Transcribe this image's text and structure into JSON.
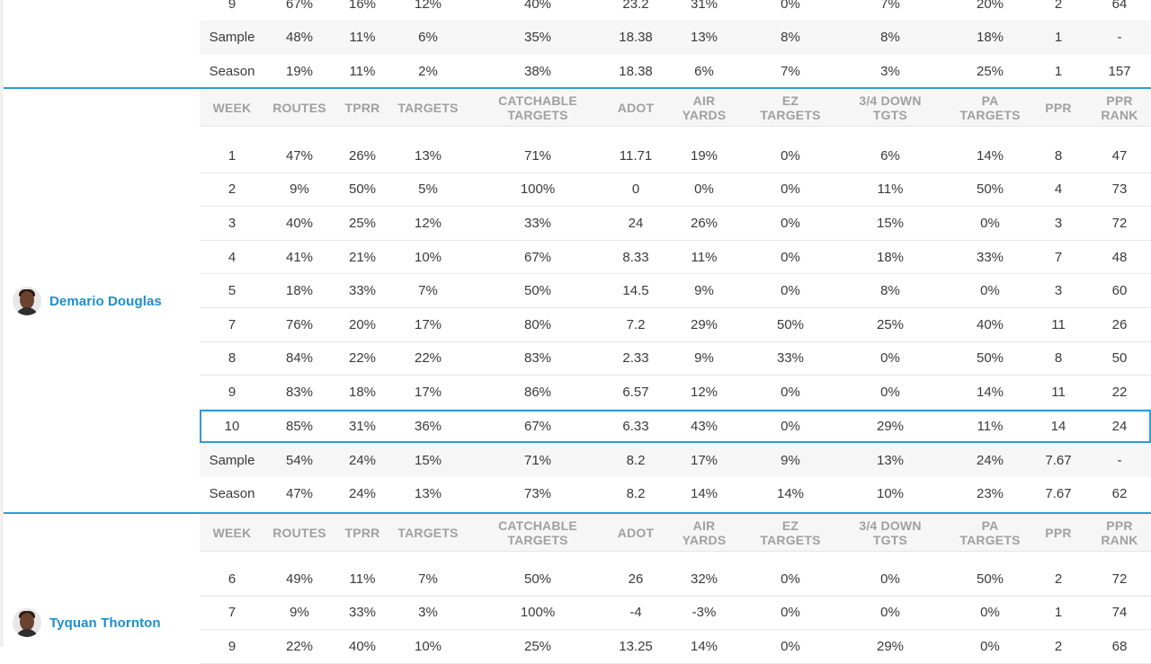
{
  "columns": [
    "WEEK",
    "ROUTES",
    "TPRR",
    "TARGETS",
    "CATCHABLE\nTARGETS",
    "ADOT",
    "AIR\nYARDS",
    "EZ\nTARGETS",
    "3/4 DOWN\nTGTS",
    "PA\nTARGETS",
    "PPR",
    "PPR\nRANK"
  ],
  "prev_player": {
    "rows": [
      [
        "9",
        "67%",
        "16%",
        "12%",
        "40%",
        "23.2",
        "31%",
        "0%",
        "7%",
        "20%",
        "2",
        "64"
      ],
      [
        "Sample",
        "48%",
        "11%",
        "6%",
        "35%",
        "18.38",
        "13%",
        "8%",
        "8%",
        "18%",
        "1",
        "-"
      ],
      [
        "Season",
        "19%",
        "11%",
        "2%",
        "38%",
        "18.38",
        "6%",
        "7%",
        "3%",
        "25%",
        "1",
        "157"
      ]
    ]
  },
  "player1": {
    "name": "Demario Douglas",
    "rows": [
      [
        "1",
        "47%",
        "26%",
        "13%",
        "71%",
        "11.71",
        "19%",
        "0%",
        "6%",
        "14%",
        "8",
        "47"
      ],
      [
        "2",
        "9%",
        "50%",
        "5%",
        "100%",
        "0",
        "0%",
        "0%",
        "11%",
        "50%",
        "4",
        "73"
      ],
      [
        "3",
        "40%",
        "25%",
        "12%",
        "33%",
        "24",
        "26%",
        "0%",
        "15%",
        "0%",
        "3",
        "72"
      ],
      [
        "4",
        "41%",
        "21%",
        "10%",
        "67%",
        "8.33",
        "11%",
        "0%",
        "18%",
        "33%",
        "7",
        "48"
      ],
      [
        "5",
        "18%",
        "33%",
        "7%",
        "50%",
        "14.5",
        "9%",
        "0%",
        "8%",
        "0%",
        "3",
        "60"
      ],
      [
        "7",
        "76%",
        "20%",
        "17%",
        "80%",
        "7.2",
        "29%",
        "50%",
        "25%",
        "40%",
        "11",
        "26"
      ],
      [
        "8",
        "84%",
        "22%",
        "22%",
        "83%",
        "2.33",
        "9%",
        "33%",
        "0%",
        "50%",
        "8",
        "50"
      ],
      [
        "9",
        "83%",
        "18%",
        "17%",
        "86%",
        "6.57",
        "12%",
        "0%",
        "0%",
        "14%",
        "11",
        "22"
      ],
      [
        "10",
        "85%",
        "31%",
        "36%",
        "67%",
        "6.33",
        "43%",
        "0%",
        "29%",
        "11%",
        "14",
        "24"
      ],
      [
        "Sample",
        "54%",
        "24%",
        "15%",
        "71%",
        "8.2",
        "17%",
        "9%",
        "13%",
        "24%",
        "7.67",
        "-"
      ],
      [
        "Season",
        "47%",
        "24%",
        "13%",
        "73%",
        "8.2",
        "14%",
        "14%",
        "10%",
        "23%",
        "7.67",
        "62"
      ]
    ]
  },
  "player2": {
    "name": "Tyquan Thornton",
    "rows": [
      [
        "6",
        "49%",
        "11%",
        "7%",
        "50%",
        "26",
        "32%",
        "0%",
        "0%",
        "50%",
        "2",
        "72"
      ],
      [
        "7",
        "9%",
        "33%",
        "3%",
        "100%",
        "-4",
        "-3%",
        "0%",
        "0%",
        "0%",
        "1",
        "74"
      ],
      [
        "9",
        "22%",
        "40%",
        "10%",
        "25%",
        "13.25",
        "14%",
        "0%",
        "29%",
        "0%",
        "2",
        "68"
      ]
    ]
  },
  "colors": {
    "accent": "#2f9bd7",
    "name": "#1b8fd0",
    "header_text": "#a0a0a0",
    "stripe": "#f6f6f6"
  }
}
